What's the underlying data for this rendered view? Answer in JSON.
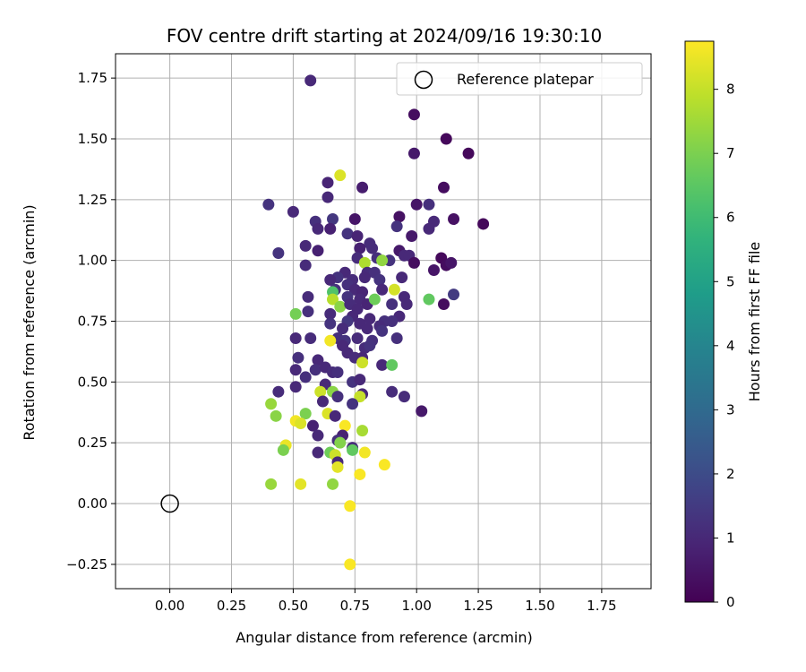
{
  "chart_data": {
    "type": "scatter",
    "title": "FOV centre drift starting at 2024/09/16 19:30:10",
    "xlabel": "Angular distance from reference (arcmin)",
    "ylabel": "Rotation from reference (arcmin)",
    "xlim": [
      -0.22,
      1.95
    ],
    "ylim": [
      -0.35,
      1.85
    ],
    "xticks": [
      0.0,
      0.25,
      0.5,
      0.75,
      1.0,
      1.25,
      1.5,
      1.75
    ],
    "xtick_labels": [
      "0.00",
      "0.25",
      "0.50",
      "0.75",
      "1.00",
      "1.25",
      "1.50",
      "1.75"
    ],
    "yticks": [
      -0.25,
      0.0,
      0.25,
      0.5,
      0.75,
      1.0,
      1.25,
      1.5,
      1.75
    ],
    "ytick_labels": [
      "−0.25",
      "0.00",
      "0.25",
      "0.50",
      "0.75",
      "1.00",
      "1.25",
      "1.50",
      "1.75"
    ],
    "grid": true,
    "legend": {
      "position": "top-right",
      "label": "Reference platepar"
    },
    "reference_point": {
      "x": 0.0,
      "y": 0.0
    },
    "colorbar": {
      "label": "Hours from first FF file",
      "colormap": "viridis",
      "range": [
        0,
        8.75
      ],
      "ticks": [
        0,
        1,
        2,
        3,
        4,
        5,
        6,
        7,
        8
      ],
      "tick_labels": [
        "0",
        "1",
        "2",
        "3",
        "4",
        "5",
        "6",
        "7",
        "8"
      ]
    },
    "points": [
      [
        0.57,
        1.74,
        1.0
      ],
      [
        0.99,
        1.6,
        0.3
      ],
      [
        1.12,
        1.5,
        0.2
      ],
      [
        0.99,
        1.44,
        0.6
      ],
      [
        1.21,
        1.44,
        0.2
      ],
      [
        0.69,
        1.35,
        8.3
      ],
      [
        0.64,
        1.32,
        0.9
      ],
      [
        0.78,
        1.3,
        0.7
      ],
      [
        1.11,
        1.3,
        0.3
      ],
      [
        0.64,
        1.26,
        1.0
      ],
      [
        0.4,
        1.23,
        1.3
      ],
      [
        1.0,
        1.23,
        0.5
      ],
      [
        1.05,
        1.23,
        1.2
      ],
      [
        0.5,
        1.2,
        1.0
      ],
      [
        0.93,
        1.18,
        0.4
      ],
      [
        0.59,
        1.16,
        1.2
      ],
      [
        0.66,
        1.17,
        1.4
      ],
      [
        0.75,
        1.17,
        0.5
      ],
      [
        1.07,
        1.16,
        1.0
      ],
      [
        1.15,
        1.17,
        0.4
      ],
      [
        1.27,
        1.15,
        0.2
      ],
      [
        0.6,
        1.13,
        1.0
      ],
      [
        0.65,
        1.13,
        0.8
      ],
      [
        0.72,
        1.11,
        1.3
      ],
      [
        0.92,
        1.14,
        1.3
      ],
      [
        1.05,
        1.13,
        1.0
      ],
      [
        0.76,
        1.1,
        0.9
      ],
      [
        0.98,
        1.1,
        0.6
      ],
      [
        0.81,
        1.07,
        1.1
      ],
      [
        0.55,
        1.06,
        1.0
      ],
      [
        0.77,
        1.05,
        0.8
      ],
      [
        0.44,
        1.03,
        1.3
      ],
      [
        0.6,
        1.04,
        0.8
      ],
      [
        0.82,
        1.05,
        1.1
      ],
      [
        0.93,
        1.04,
        0.6
      ],
      [
        0.95,
        1.02,
        1.0
      ],
      [
        0.97,
        1.02,
        1.0
      ],
      [
        0.76,
        1.01,
        1.1
      ],
      [
        0.84,
        1.01,
        1.2
      ],
      [
        0.89,
        1.0,
        1.3
      ],
      [
        1.1,
        1.01,
        0.2
      ],
      [
        1.12,
        0.98,
        0.3
      ],
      [
        1.14,
        0.99,
        0.5
      ],
      [
        0.55,
        0.98,
        1.1
      ],
      [
        0.79,
        0.99,
        7.7
      ],
      [
        0.86,
        1.0,
        7.3
      ],
      [
        0.99,
        0.99,
        0.3
      ],
      [
        1.07,
        0.96,
        0.5
      ],
      [
        0.8,
        0.95,
        1.1
      ],
      [
        0.83,
        0.95,
        1.2
      ],
      [
        0.71,
        0.95,
        1.0
      ],
      [
        0.68,
        0.93,
        1.3
      ],
      [
        0.65,
        0.92,
        1.0
      ],
      [
        0.74,
        0.92,
        1.1
      ],
      [
        0.79,
        0.93,
        1.0
      ],
      [
        0.85,
        0.92,
        1.3
      ],
      [
        0.94,
        0.93,
        1.0
      ],
      [
        0.67,
        0.88,
        1.2
      ],
      [
        0.66,
        0.87,
        6.3
      ],
      [
        0.72,
        0.9,
        1.2
      ],
      [
        0.75,
        0.88,
        1.0
      ],
      [
        0.78,
        0.87,
        0.9
      ],
      [
        0.86,
        0.88,
        1.0
      ],
      [
        0.91,
        0.88,
        8.2
      ],
      [
        0.95,
        0.85,
        1.0
      ],
      [
        1.05,
        0.84,
        6.6
      ],
      [
        1.15,
        0.86,
        1.5
      ],
      [
        0.56,
        0.85,
        1.1
      ],
      [
        0.66,
        0.84,
        7.8
      ],
      [
        0.72,
        0.85,
        1.3
      ],
      [
        0.77,
        0.84,
        1.0
      ],
      [
        0.8,
        0.82,
        0.9
      ],
      [
        0.83,
        0.84,
        6.8
      ],
      [
        0.9,
        0.82,
        1.2
      ],
      [
        0.96,
        0.82,
        1.0
      ],
      [
        1.11,
        0.82,
        0.3
      ],
      [
        0.69,
        0.81,
        7.2
      ],
      [
        0.73,
        0.82,
        1.1
      ],
      [
        0.76,
        0.8,
        1.0
      ],
      [
        0.51,
        0.78,
        6.9
      ],
      [
        0.56,
        0.79,
        1.2
      ],
      [
        0.65,
        0.78,
        1.1
      ],
      [
        0.74,
        0.77,
        1.0
      ],
      [
        0.81,
        0.76,
        1.0
      ],
      [
        0.87,
        0.75,
        1.2
      ],
      [
        0.93,
        0.77,
        1.0
      ],
      [
        0.65,
        0.74,
        1.3
      ],
      [
        0.72,
        0.75,
        1.4
      ],
      [
        0.77,
        0.74,
        1.0
      ],
      [
        0.85,
        0.73,
        1.1
      ],
      [
        0.9,
        0.75,
        1.2
      ],
      [
        0.7,
        0.72,
        1.1
      ],
      [
        0.8,
        0.72,
        1.0
      ],
      [
        0.86,
        0.71,
        1.3
      ],
      [
        0.51,
        0.68,
        1.0
      ],
      [
        0.57,
        0.68,
        1.1
      ],
      [
        0.68,
        0.68,
        1.2
      ],
      [
        0.65,
        0.67,
        8.6
      ],
      [
        0.71,
        0.67,
        1.3
      ],
      [
        0.76,
        0.68,
        1.1
      ],
      [
        0.82,
        0.67,
        1.2
      ],
      [
        0.92,
        0.68,
        1.2
      ],
      [
        0.7,
        0.65,
        1.0
      ],
      [
        0.79,
        0.64,
        1.1
      ],
      [
        0.81,
        0.65,
        1.3
      ],
      [
        0.72,
        0.62,
        1.0
      ],
      [
        0.75,
        0.6,
        1.1
      ],
      [
        0.78,
        0.6,
        1.0
      ],
      [
        0.52,
        0.6,
        1.2
      ],
      [
        0.6,
        0.59,
        1.0
      ],
      [
        0.78,
        0.58,
        8.1
      ],
      [
        0.86,
        0.57,
        1.0
      ],
      [
        0.9,
        0.57,
        6.6
      ],
      [
        0.51,
        0.55,
        1.0
      ],
      [
        0.59,
        0.55,
        1.2
      ],
      [
        0.63,
        0.56,
        1.0
      ],
      [
        0.66,
        0.54,
        1.1
      ],
      [
        0.68,
        0.54,
        1.2
      ],
      [
        0.55,
        0.52,
        1.2
      ],
      [
        0.74,
        0.5,
        1.3
      ],
      [
        0.77,
        0.51,
        1.0
      ],
      [
        0.63,
        0.49,
        1.0
      ],
      [
        0.51,
        0.48,
        1.0
      ],
      [
        0.44,
        0.46,
        1.1
      ],
      [
        0.61,
        0.46,
        8.1
      ],
      [
        0.66,
        0.46,
        7.2
      ],
      [
        0.78,
        0.45,
        1.0
      ],
      [
        0.68,
        0.44,
        1.2
      ],
      [
        0.77,
        0.44,
        8.0
      ],
      [
        0.9,
        0.46,
        1.1
      ],
      [
        0.95,
        0.44,
        1.1
      ],
      [
        0.41,
        0.41,
        7.4
      ],
      [
        0.62,
        0.42,
        1.0
      ],
      [
        0.74,
        0.41,
        1.3
      ],
      [
        1.02,
        0.38,
        0.6
      ],
      [
        0.43,
        0.36,
        7.2
      ],
      [
        0.55,
        0.37,
        7.0
      ],
      [
        0.64,
        0.37,
        8.3
      ],
      [
        0.67,
        0.36,
        1.0
      ],
      [
        0.51,
        0.34,
        8.6
      ],
      [
        0.53,
        0.33,
        8.3
      ],
      [
        0.58,
        0.32,
        0.8
      ],
      [
        0.71,
        0.32,
        8.7
      ],
      [
        0.78,
        0.3,
        7.6
      ],
      [
        0.6,
        0.28,
        1.0
      ],
      [
        0.7,
        0.28,
        0.8
      ],
      [
        0.68,
        0.26,
        1.2
      ],
      [
        0.47,
        0.24,
        8.5
      ],
      [
        0.69,
        0.25,
        7.1
      ],
      [
        0.74,
        0.23,
        1.1
      ],
      [
        0.46,
        0.22,
        7.0
      ],
      [
        0.6,
        0.21,
        1.0
      ],
      [
        0.65,
        0.21,
        6.8
      ],
      [
        0.67,
        0.2,
        8.1
      ],
      [
        0.74,
        0.22,
        6.6
      ],
      [
        0.79,
        0.21,
        8.6
      ],
      [
        0.68,
        0.17,
        1.0
      ],
      [
        0.68,
        0.15,
        8.4
      ],
      [
        0.87,
        0.16,
        8.7
      ],
      [
        0.77,
        0.12,
        8.7
      ],
      [
        0.41,
        0.08,
        7.4
      ],
      [
        0.53,
        0.08,
        8.4
      ],
      [
        0.66,
        0.08,
        7.3
      ],
      [
        0.73,
        -0.01,
        8.7
      ],
      [
        0.73,
        -0.25,
        8.7
      ]
    ]
  }
}
